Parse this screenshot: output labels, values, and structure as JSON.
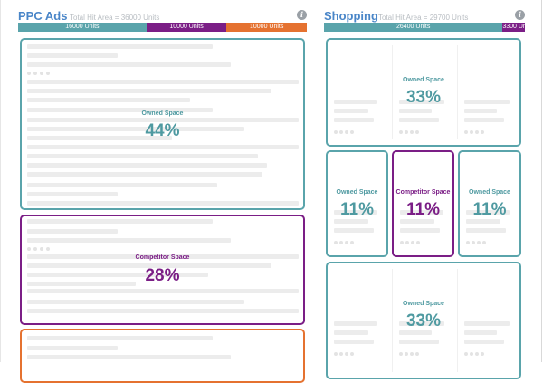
{
  "ppc": {
    "title": "PPC Ads",
    "subtitle": "Total Hit Area = 36000 Units",
    "bar": [
      {
        "label": "16000 Units",
        "value": 16000,
        "color": "#5aa4ab"
      },
      {
        "label": "10000 Units",
        "value": 10000,
        "color": "#7b1e86"
      },
      {
        "label": "10000 Units",
        "value": 10000,
        "color": "#e57230"
      }
    ],
    "cards": [
      {
        "label": "Owned Space",
        "pct": "44%"
      },
      {
        "label": "Competitor Space",
        "pct": "28%"
      }
    ]
  },
  "shopping": {
    "title": "Shopping",
    "subtitle": "Total Hit Area = 29700 Units",
    "bar": [
      {
        "label": "26400 Units",
        "value": 26400,
        "color": "#5aa4ab"
      },
      {
        "label": "3300 Units",
        "value": 3300,
        "color": "#7b1e86"
      }
    ],
    "cards": [
      {
        "label": "Owned Space",
        "pct": "33%"
      },
      {
        "label": "Owned Space",
        "pct": "11%"
      },
      {
        "label": "Competitor Space",
        "pct": "11%"
      },
      {
        "label": "Owned Space",
        "pct": "11%"
      },
      {
        "label": "Owned Space",
        "pct": "33%"
      }
    ]
  },
  "colors": {
    "owned": "#5aa4ab",
    "competitor": "#7b1e86",
    "other": "#e57230",
    "title": "#4a86c8"
  },
  "icons": {
    "info": "info-icon"
  }
}
